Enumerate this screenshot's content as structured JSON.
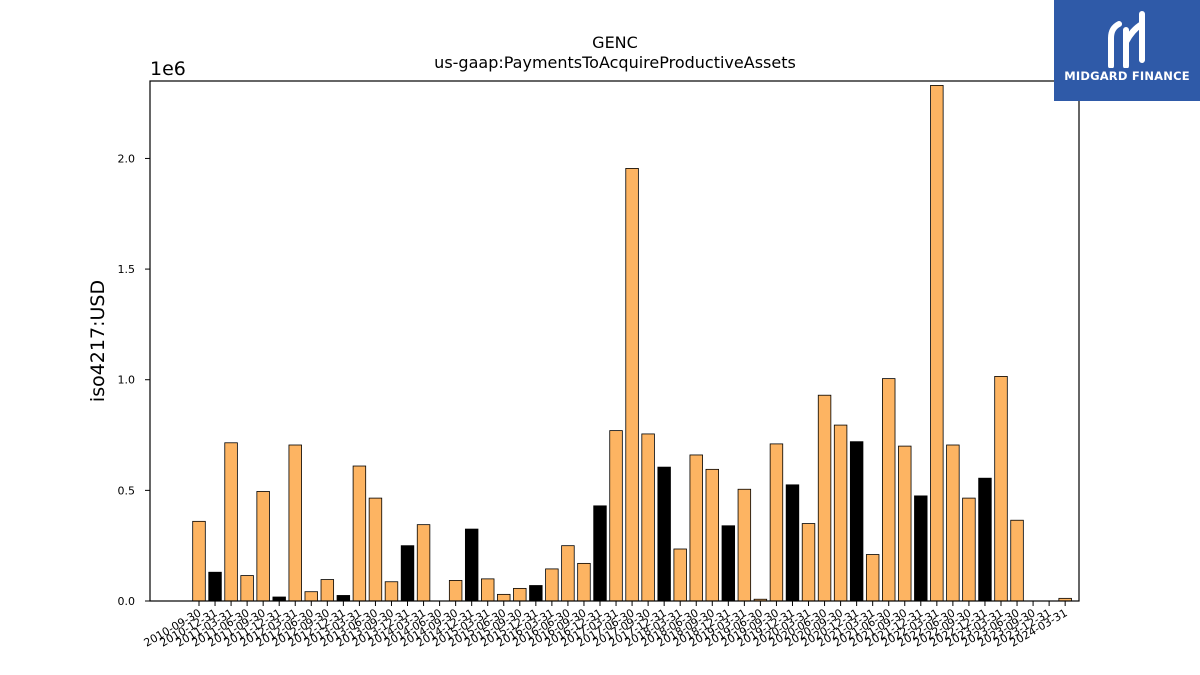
{
  "logo": {
    "text": "MIDGARD FINANCE",
    "background": "#2f5aa8",
    "icon": "midgard-logo-icon"
  },
  "chart_data": {
    "type": "bar",
    "title": "GENC",
    "subtitle": "us-gaap:PaymentsToAcquireProductiveAssets",
    "ylabel": "iso4217:USD",
    "xlabel": "",
    "offset_text": "1e6",
    "ylim": [
      0,
      2350000
    ],
    "yticks": [
      0,
      500000,
      1000000,
      1500000,
      2000000
    ],
    "ytick_labels": [
      "0.0",
      "0.5",
      "1.0",
      "1.5",
      "2.0"
    ],
    "grid": false,
    "colors": {
      "quarter": "#fdb462",
      "fiscal_year_end": "#000000",
      "edge": "#000000"
    },
    "categories": [
      "2010-09-30",
      "2010-12-31",
      "2011-03-31",
      "2011-06-30",
      "2011-09-30",
      "2011-12-31",
      "2012-03-31",
      "2012-06-30",
      "2012-09-30",
      "2012-12-31",
      "2013-03-31",
      "2013-06-30",
      "2013-09-30",
      "2013-12-31",
      "2014-03-31",
      "2014-06-30",
      "2014-09-30",
      "2014-12-31",
      "2015-03-31",
      "2015-06-30",
      "2015-09-30",
      "2015-12-31",
      "2016-03-31",
      "2016-06-30",
      "2016-09-30",
      "2016-12-31",
      "2017-03-31",
      "2017-06-30",
      "2017-09-30",
      "2017-12-31",
      "2018-03-31",
      "2018-06-30",
      "2018-09-30",
      "2018-12-31",
      "2019-03-31",
      "2019-06-30",
      "2019-09-30",
      "2019-12-31",
      "2020-03-31",
      "2020-06-30",
      "2020-09-30",
      "2020-12-31",
      "2021-03-31",
      "2021-06-30",
      "2021-09-30",
      "2021-12-31",
      "2022-03-31",
      "2022-06-30",
      "2022-09-30",
      "2022-12-31",
      "2023-03-31",
      "2023-06-30",
      "2023-09-30",
      "2023-12-31",
      "2024-03-31"
    ],
    "values": [
      360000,
      130000,
      715000,
      115000,
      495000,
      18000,
      705000,
      42000,
      97000,
      25000,
      610000,
      465000,
      87000,
      250000,
      345000,
      0,
      93000,
      325000,
      100000,
      30000,
      57000,
      70000,
      145000,
      250000,
      170000,
      430000,
      770000,
      1955000,
      755000,
      605000,
      235000,
      660000,
      595000,
      340000,
      505000,
      8000,
      710000,
      525000,
      350000,
      930000,
      795000,
      720000,
      210000,
      1005000,
      700000,
      475000,
      2330000,
      705000,
      465000,
      555000,
      1015000,
      365000,
      0,
      0,
      12000
    ],
    "fiscal_year_end_flags": [
      0,
      1,
      0,
      0,
      0,
      1,
      0,
      0,
      0,
      1,
      0,
      0,
      0,
      1,
      0,
      0,
      0,
      1,
      0,
      0,
      0,
      1,
      0,
      0,
      0,
      1,
      0,
      0,
      0,
      1,
      0,
      0,
      0,
      1,
      0,
      0,
      0,
      1,
      0,
      0,
      0,
      1,
      0,
      0,
      0,
      1,
      0,
      0,
      0,
      1,
      0,
      0,
      0,
      1,
      0
    ]
  }
}
